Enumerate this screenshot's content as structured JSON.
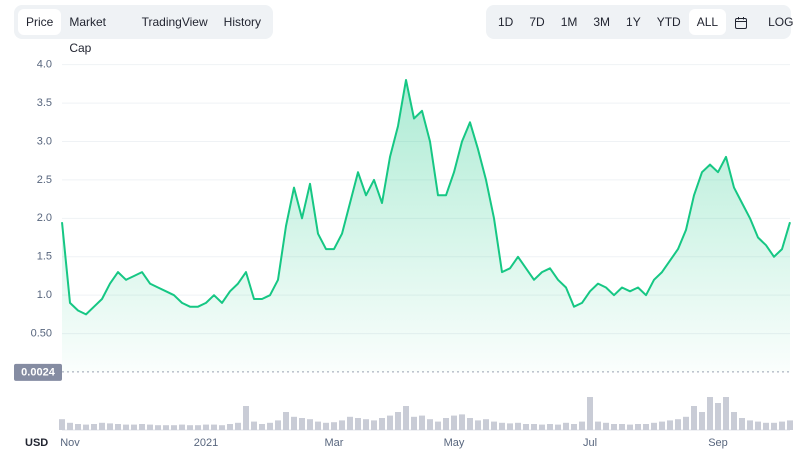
{
  "ui": {
    "tabs": [
      "Price",
      "Market Cap",
      "TradingView",
      "History"
    ],
    "range_buttons": [
      "1D",
      "7D",
      "1M",
      "3M",
      "1Y",
      "YTD",
      "ALL"
    ],
    "log_button": "LOG"
  },
  "chart_data": {
    "type": "line",
    "area": true,
    "color": "#16c784",
    "volume_color": "#c9ccd6",
    "currency_label": "USD",
    "reference_line": {
      "value": 0.0024,
      "label": "0.0024"
    },
    "categories": [
      null,
      "Nov",
      null,
      null,
      null,
      null,
      null,
      null,
      null,
      null,
      null,
      null,
      null,
      null,
      null,
      null,
      null,
      null,
      "2021",
      null,
      null,
      null,
      null,
      null,
      null,
      null,
      null,
      null,
      null,
      null,
      null,
      null,
      null,
      null,
      "Mar",
      null,
      null,
      null,
      null,
      null,
      null,
      null,
      null,
      null,
      null,
      null,
      null,
      null,
      null,
      "May",
      null,
      null,
      null,
      null,
      null,
      null,
      null,
      null,
      null,
      null,
      null,
      null,
      null,
      null,
      null,
      null,
      "Jul",
      null,
      null,
      null,
      null,
      null,
      null,
      null,
      null,
      null,
      null,
      null,
      null,
      null,
      null,
      null,
      "Sep",
      null,
      null,
      null,
      null,
      null,
      null,
      null,
      null,
      null
    ],
    "values": [
      1.95,
      0.9,
      0.8,
      0.75,
      0.85,
      0.95,
      1.15,
      1.3,
      1.2,
      1.25,
      1.3,
      1.15,
      1.1,
      1.05,
      1.0,
      0.9,
      0.85,
      0.85,
      0.9,
      1.0,
      0.9,
      1.05,
      1.15,
      1.3,
      0.95,
      0.95,
      1.0,
      1.2,
      1.9,
      2.4,
      2.0,
      2.45,
      1.8,
      1.6,
      1.6,
      1.8,
      2.2,
      2.6,
      2.3,
      2.5,
      2.2,
      2.8,
      3.2,
      3.8,
      3.3,
      3.4,
      3.0,
      2.3,
      2.3,
      2.6,
      3.0,
      3.25,
      2.9,
      2.5,
      2.0,
      1.3,
      1.35,
      1.5,
      1.35,
      1.2,
      1.3,
      1.35,
      1.2,
      1.1,
      0.85,
      0.9,
      1.05,
      1.15,
      1.1,
      1.0,
      1.1,
      1.05,
      1.1,
      1.0,
      1.2,
      1.3,
      1.45,
      1.6,
      1.85,
      2.3,
      2.6,
      2.7,
      2.6,
      2.8,
      2.4,
      2.2,
      2.0,
      1.75,
      1.65,
      1.5,
      1.6,
      1.95
    ],
    "volume": [
      18,
      12,
      10,
      9,
      10,
      12,
      11,
      10,
      9,
      9,
      10,
      9,
      8,
      8,
      8,
      9,
      8,
      8,
      9,
      9,
      8,
      10,
      12,
      40,
      14,
      10,
      12,
      16,
      30,
      22,
      20,
      18,
      14,
      12,
      13,
      16,
      22,
      20,
      18,
      16,
      20,
      24,
      30,
      40,
      22,
      24,
      18,
      14,
      20,
      24,
      26,
      20,
      16,
      18,
      14,
      12,
      11,
      12,
      10,
      10,
      9,
      10,
      9,
      12,
      10,
      14,
      55,
      14,
      12,
      10,
      10,
      9,
      10,
      10,
      12,
      14,
      16,
      18,
      22,
      40,
      30,
      55,
      45,
      55,
      30,
      20,
      16,
      14,
      12,
      12,
      14,
      16
    ],
    "ylim": [
      0,
      4.1
    ],
    "yticks": [
      {
        "value": 0.5,
        "label": "0.50"
      },
      {
        "value": 1,
        "label": "1.0"
      },
      1.5,
      {
        "value": 2,
        "label": "2.0"
      },
      2.5,
      {
        "value": 3,
        "label": "3.0"
      },
      3.5,
      {
        "value": 4,
        "label": "4.0"
      }
    ],
    "y2lim": [
      0,
      100
    ],
    "grid": true
  }
}
